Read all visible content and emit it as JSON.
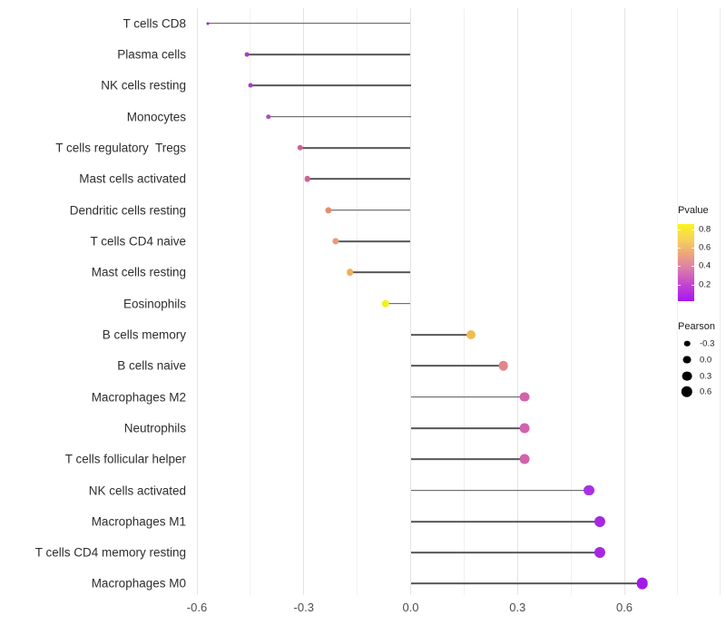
{
  "chart_data": {
    "type": "scatter",
    "variant": "lollipop",
    "orientation": "horizontal",
    "title": "",
    "xlabel": "",
    "ylabel": "",
    "xlim": [
      -0.63,
      0.87
    ],
    "x_ticks": [
      -0.6,
      -0.3,
      0.0,
      0.3,
      0.6
    ],
    "x_tick_labels": [
      "-0.6",
      "-0.3",
      "0.0",
      "0.3",
      "0.6"
    ],
    "x_minor_gridlines": [
      -0.45,
      -0.15,
      0.15,
      0.45,
      0.75
    ],
    "grid": "vertical major+minor, no axis lines",
    "rows": [
      {
        "label": "T cells CD8",
        "pearson": -0.57,
        "pvalue": 0.07,
        "color": "#8E2BBE"
      },
      {
        "label": "Plasma cells",
        "pearson": -0.46,
        "pvalue": 0.18,
        "color": "#A73FC6"
      },
      {
        "label": "NK cells resting",
        "pearson": -0.45,
        "pvalue": 0.18,
        "color": "#A73FC6"
      },
      {
        "label": "Monocytes",
        "pearson": -0.4,
        "pvalue": 0.22,
        "color": "#B348C4"
      },
      {
        "label": "T cells regulatory  Tregs",
        "pearson": -0.31,
        "pvalue": 0.4,
        "color": "#CD6396"
      },
      {
        "label": "Mast cells activated",
        "pearson": -0.29,
        "pvalue": 0.4,
        "color": "#CD6396"
      },
      {
        "label": "Dendritic cells resting",
        "pearson": -0.23,
        "pvalue": 0.55,
        "color": "#E58E70"
      },
      {
        "label": "T cells CD4 naive",
        "pearson": -0.21,
        "pvalue": 0.58,
        "color": "#E89B76"
      },
      {
        "label": "Mast cells resting",
        "pearson": -0.17,
        "pvalue": 0.65,
        "color": "#ECB25F"
      },
      {
        "label": "Eosinophils",
        "pearson": -0.07,
        "pvalue": 0.85,
        "color": "#F2F218"
      },
      {
        "label": "B cells memory",
        "pearson": 0.17,
        "pvalue": 0.64,
        "color": "#EFBC51"
      },
      {
        "label": "B cells naive",
        "pearson": 0.26,
        "pvalue": 0.5,
        "color": "#E2868A"
      },
      {
        "label": "Macrophages M2",
        "pearson": 0.32,
        "pvalue": 0.38,
        "color": "#D263AC"
      },
      {
        "label": "Neutrophils",
        "pearson": 0.32,
        "pvalue": 0.38,
        "color": "#D263AC"
      },
      {
        "label": "T cells follicular helper",
        "pearson": 0.32,
        "pvalue": 0.38,
        "color": "#D263AC"
      },
      {
        "label": "NK cells activated",
        "pearson": 0.5,
        "pvalue": 0.1,
        "color": "#A930E2"
      },
      {
        "label": "Macrophages M1",
        "pearson": 0.53,
        "pvalue": 0.09,
        "color": "#A628E2"
      },
      {
        "label": "T cells CD4 memory resting",
        "pearson": 0.53,
        "pvalue": 0.09,
        "color": "#A628E2"
      },
      {
        "label": "Macrophages M0",
        "pearson": 0.65,
        "pvalue": 0.05,
        "color": "#A21BE6"
      }
    ],
    "legend_pvalue": {
      "title": "Pvalue",
      "tick_labels": [
        "0.8",
        "0.6",
        "0.4",
        "0.2"
      ],
      "range": [
        0.02,
        0.86
      ],
      "gradient_stops_bottom_to_top": [
        {
          "pos": 0,
          "color": "#A716F2"
        },
        {
          "pos": 22,
          "color": "#C446CE"
        },
        {
          "pos": 42,
          "color": "#DC7BAC"
        },
        {
          "pos": 62,
          "color": "#EEA878"
        },
        {
          "pos": 80,
          "color": "#F5D25C"
        },
        {
          "pos": 100,
          "color": "#FAF41C"
        }
      ]
    },
    "legend_pearson": {
      "title": "Pearson",
      "item_labels": [
        "-0.3",
        "0.0",
        "0.3",
        "0.6"
      ],
      "item_values": [
        -0.3,
        0.0,
        0.3,
        0.6
      ],
      "dot_color": "#000000"
    }
  },
  "colors": {
    "background": "#FFFFFF",
    "stem": "#565656",
    "grid_major": "#E4E4E4",
    "grid_minor": "#F1F1F1",
    "axis_text": "#4D4D4D",
    "label_text": "#2E2E2E"
  }
}
